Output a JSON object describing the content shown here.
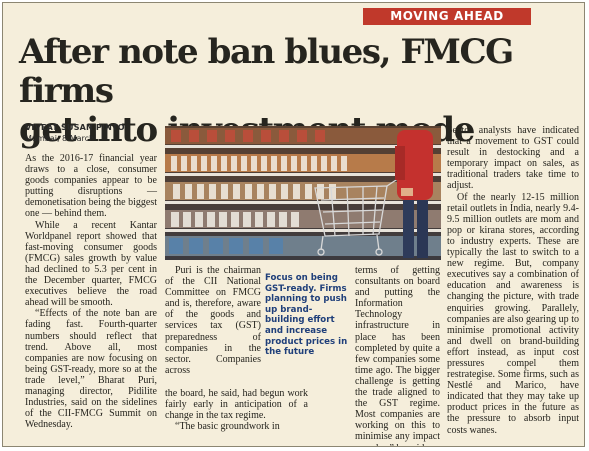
{
  "article": {
    "section": "MOVING AHEAD",
    "headline_line1": "After note ban blues, FMCG firms",
    "headline_line2": "get into investment mode",
    "byline": "VIVEAT SUSAN PINTO",
    "dateline": "Mumbai, 8 March",
    "col1": [
      "As the 2016-17 financial year draws to a close, consumer goods companies appear to be putting disruptions — demonetisation being the biggest one — behind them.",
      "While a recent Kantar Worldpanel report showed that fast-moving consumer goods (FMCG) sales growth by value had declined to 5.3 per cent in the December quarter, FMCG executives believe the road ahead will be smooth.",
      "“Effects of the note ban are fading fast. Fourth-quarter numbers should reflect that trend. Above all, most companies are now focusing on being GST-ready, more so at the trade level,” Bharat Puri, managing director, Pidilite Industries, said on the sidelines of the CII-FMCG Summit on Wednesday."
    ],
    "col2_p1": "Puri is the chairman of the CII National Committee on FMCG and is, therefore, aware of the goods and services tax (GST) preparedness of companies in the sector. Companies across",
    "col2_tail": "the board, he said, had begun work fairly early in anticipation of a change in the tax regime.",
    "col2_p2": "“The basic groundwork in",
    "highlight": "Focus on being GST-ready. Firms planning to push up brand-building effort and increase product prices in the future",
    "col3_p1": "terms of getting consultants on board and putting the Information Technology infrastructure in place has been completed by quite a few companies some time ago. The bigger challenge is getting the trade aligned to the GST regime. Most companies are working on this to minimise any impact on sales,” he said.",
    "col4": [
      "Sector analysts have indicated that a movement to GST could result in destocking and a temporary impact on sales, as traditional traders take time to adjust.",
      "Of the nearly 12-15 million retail outlets in India, nearly 9.4-9.5 million outlets are mom and pop or kirana stores, according to industry experts. These are typically the last to switch to a new regime. But, company executives say a combination of education and awareness is changing the picture, with trade enquiries growing. Parallely, companies are also gearing up to minimise promotional activity and dwell on brand-building effort instead, as input cost pressures compel them restrategise. Some firms, such as Nestlé and Marico, have indicated that they may take up product prices in the future as the pressure to absorb input costs wanes."
    ]
  },
  "colors": {
    "paper": "#f5eedb",
    "section_bg": "#c0392b",
    "highlight_text": "#1f3f7a",
    "body_text": "#25241e"
  },
  "image": {
    "subject": "supermarket shelves with shopping trolley"
  }
}
